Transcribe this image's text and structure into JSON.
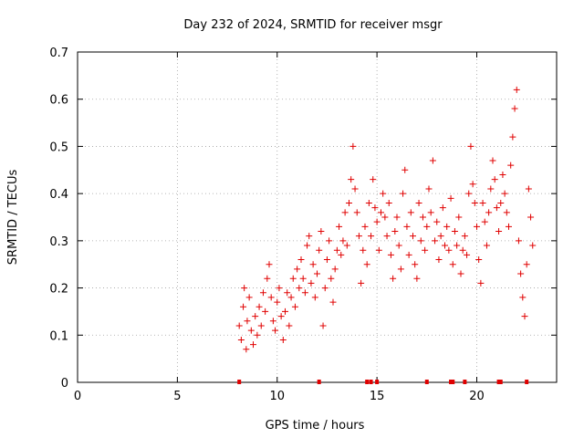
{
  "chart_data": {
    "type": "scatter",
    "title": "Day 232 of 2024, SRMTID for receiver msgr",
    "xlabel": "GPS time / hours",
    "ylabel": "SRMTID / TECUs",
    "xlim": [
      0,
      24
    ],
    "ylim": [
      0,
      0.7
    ],
    "xticks": [
      0,
      5,
      10,
      15,
      20
    ],
    "xtick_labels": [
      "0",
      "5",
      "10",
      "15",
      "20"
    ],
    "yticks": [
      0,
      0.1,
      0.2,
      0.3,
      0.4,
      0.5,
      0.6,
      0.7
    ],
    "ytick_labels": [
      "0",
      "0.1",
      "0.2",
      "0.3",
      "0.4",
      "0.5",
      "0.6",
      "0.7"
    ],
    "grid": true,
    "marker": "+",
    "series": [
      {
        "name": "SRMTID",
        "color": "#e00000",
        "x": [
          8.1,
          8.2,
          8.3,
          8.35,
          8.45,
          8.5,
          8.6,
          8.7,
          8.8,
          8.9,
          9.0,
          9.1,
          9.2,
          9.3,
          9.4,
          9.5,
          9.6,
          9.7,
          9.8,
          9.9,
          10.0,
          10.1,
          10.2,
          10.3,
          10.4,
          10.5,
          10.6,
          10.7,
          10.8,
          10.9,
          11.0,
          11.1,
          11.2,
          11.3,
          11.4,
          11.5,
          11.6,
          11.7,
          11.8,
          11.9,
          12.0,
          12.1,
          12.2,
          12.3,
          12.4,
          12.5,
          12.6,
          12.7,
          12.8,
          12.9,
          13.0,
          13.1,
          13.2,
          13.3,
          13.4,
          13.5,
          13.6,
          13.7,
          13.8,
          13.9,
          14.0,
          14.1,
          14.2,
          14.3,
          14.4,
          14.5,
          14.6,
          14.7,
          14.8,
          14.9,
          15.0,
          15.1,
          15.2,
          15.3,
          15.4,
          15.5,
          15.6,
          15.7,
          15.8,
          15.9,
          16.0,
          16.1,
          16.2,
          16.3,
          16.4,
          16.5,
          16.6,
          16.7,
          16.8,
          16.9,
          17.0,
          17.1,
          17.2,
          17.3,
          17.4,
          17.5,
          17.6,
          17.7,
          17.8,
          17.9,
          18.0,
          18.1,
          18.2,
          18.3,
          18.4,
          18.5,
          18.6,
          18.7,
          18.8,
          18.9,
          19.0,
          19.1,
          19.2,
          19.3,
          19.4,
          19.5,
          19.6,
          19.7,
          19.8,
          19.9,
          20.0,
          20.1,
          20.2,
          20.3,
          20.4,
          20.5,
          20.6,
          20.7,
          20.8,
          20.9,
          21.0,
          21.1,
          21.2,
          21.3,
          21.4,
          21.5,
          21.6,
          21.7,
          21.8,
          21.9,
          22.0,
          22.1,
          22.2,
          22.3,
          22.4,
          22.5,
          22.6,
          22.7,
          22.8
        ],
        "y": [
          0.12,
          0.09,
          0.16,
          0.2,
          0.07,
          0.13,
          0.18,
          0.11,
          0.08,
          0.14,
          0.1,
          0.16,
          0.12,
          0.19,
          0.15,
          0.22,
          0.25,
          0.18,
          0.13,
          0.11,
          0.17,
          0.2,
          0.14,
          0.09,
          0.15,
          0.19,
          0.12,
          0.18,
          0.22,
          0.16,
          0.24,
          0.2,
          0.26,
          0.22,
          0.19,
          0.29,
          0.31,
          0.21,
          0.25,
          0.18,
          0.23,
          0.28,
          0.32,
          0.12,
          0.2,
          0.26,
          0.3,
          0.22,
          0.17,
          0.24,
          0.28,
          0.33,
          0.27,
          0.3,
          0.36,
          0.29,
          0.38,
          0.43,
          0.5,
          0.41,
          0.36,
          0.31,
          0.21,
          0.28,
          0.33,
          0.25,
          0.38,
          0.31,
          0.43,
          0.37,
          0.34,
          0.28,
          0.36,
          0.4,
          0.35,
          0.31,
          0.38,
          0.27,
          0.22,
          0.32,
          0.35,
          0.29,
          0.24,
          0.4,
          0.45,
          0.33,
          0.27,
          0.36,
          0.31,
          0.25,
          0.22,
          0.38,
          0.3,
          0.35,
          0.28,
          0.33,
          0.41,
          0.36,
          0.47,
          0.3,
          0.34,
          0.26,
          0.31,
          0.37,
          0.29,
          0.33,
          0.28,
          0.39,
          0.25,
          0.32,
          0.29,
          0.35,
          0.23,
          0.28,
          0.31,
          0.27,
          0.4,
          0.5,
          0.42,
          0.38,
          0.33,
          0.26,
          0.21,
          0.38,
          0.34,
          0.29,
          0.36,
          0.41,
          0.47,
          0.43,
          0.37,
          0.32,
          0.38,
          0.44,
          0.4,
          0.36,
          0.33,
          0.46,
          0.52,
          0.58,
          0.62,
          0.3,
          0.23,
          0.18,
          0.14,
          0.25,
          0.41,
          0.35,
          0.29
        ]
      }
    ],
    "axis_markers": {
      "color": "#e00000",
      "x": [
        8.1,
        12.1,
        14.5,
        14.7,
        15.0,
        17.5,
        18.7,
        18.8,
        19.4,
        21.1,
        21.2,
        22.5
      ]
    }
  }
}
